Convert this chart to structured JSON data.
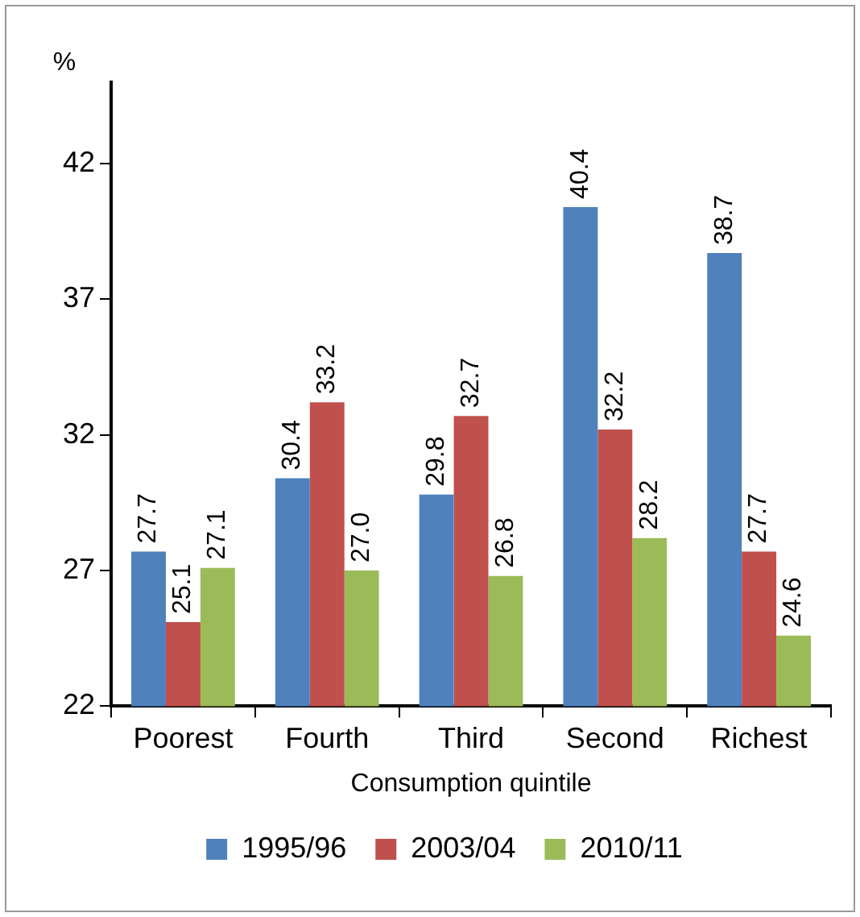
{
  "chart_data": {
    "type": "bar",
    "xlabel": "Consumption quintile",
    "ylabel": "%",
    "categories": [
      "Poorest",
      "Fourth",
      "Third",
      "Second",
      "Richest"
    ],
    "series": [
      {
        "name": "1995/96",
        "color": "#4f81bd",
        "values": [
          27.7,
          30.4,
          29.8,
          40.4,
          38.7
        ],
        "value_labels": [
          "27.7",
          "30.4",
          "29.8",
          "40.4",
          "38.7"
        ]
      },
      {
        "name": "2003/04",
        "color": "#c0504d",
        "values": [
          25.1,
          33.2,
          32.7,
          32.2,
          27.7
        ],
        "value_labels": [
          "25.1",
          "33.2",
          "32.7",
          "32.2",
          "27.7"
        ]
      },
      {
        "name": "2010/11",
        "color": "#9bbb59",
        "values": [
          27.1,
          27.0,
          26.8,
          28.2,
          24.6
        ],
        "value_labels": [
          "27.1",
          "27.0",
          "26.8",
          "28.2",
          "24.6"
        ]
      }
    ],
    "ylim": [
      22,
      45
    ],
    "yticks": [
      22,
      27,
      32,
      37,
      42
    ],
    "grid": false,
    "legend": "bottom"
  }
}
